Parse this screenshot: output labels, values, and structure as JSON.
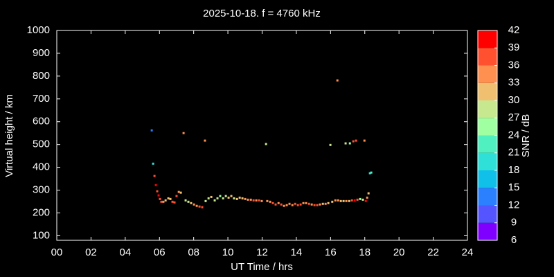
{
  "chart_data": {
    "type": "scatter",
    "title": "2025-10-18. f = 4760 kHz",
    "xlabel": "UT Time / hrs",
    "ylabel": "Virtual height / km",
    "colorbar_label": "SNR / dB",
    "xlim": [
      0,
      24
    ],
    "ylim": [
      80,
      1000
    ],
    "xticks": [
      {
        "value": 0,
        "label": "00"
      },
      {
        "value": 2,
        "label": "02"
      },
      {
        "value": 4,
        "label": "04"
      },
      {
        "value": 6,
        "label": "06"
      },
      {
        "value": 8,
        "label": "08"
      },
      10,
      12,
      14,
      16,
      18,
      20,
      22,
      24
    ],
    "yticks": [
      100,
      200,
      300,
      400,
      500,
      600,
      700,
      800,
      900,
      1000
    ],
    "clim": [
      6,
      42
    ],
    "cticks": [
      6,
      9,
      12,
      15,
      18,
      21,
      24,
      27,
      30,
      33,
      36,
      39,
      42
    ],
    "colors": [
      "#8000ff",
      "#5555ff",
      "#2a80ff",
      "#10c0e8",
      "#2ee0d8",
      "#50f0c0",
      "#a0ffa0",
      "#c8e890",
      "#f0c070",
      "#ff9050",
      "#ff5030",
      "#ff0000"
    ],
    "x": [
      5.55,
      5.63,
      5.71,
      5.79,
      5.87,
      5.95,
      6.03,
      6.11,
      6.23,
      6.36,
      6.52,
      6.64,
      6.76,
      6.88,
      7.0,
      7.13,
      7.25,
      7.41,
      7.53,
      7.69,
      7.85,
      8.02,
      8.18,
      8.34,
      8.5,
      8.66,
      8.7,
      8.87,
      9.03,
      9.23,
      9.39,
      9.55,
      9.72,
      9.88,
      10.04,
      10.2,
      10.36,
      10.53,
      10.69,
      10.85,
      11.01,
      11.17,
      11.34,
      11.5,
      11.66,
      11.82,
      11.98,
      12.23,
      12.3,
      12.47,
      12.63,
      12.79,
      12.96,
      13.12,
      13.28,
      13.44,
      13.6,
      13.77,
      13.93,
      14.09,
      14.25,
      14.41,
      14.57,
      14.74,
      14.9,
      15.06,
      15.22,
      15.38,
      15.55,
      15.71,
      15.87,
      15.99,
      16.1,
      16.28,
      16.4,
      16.44,
      16.6,
      16.76,
      16.88,
      16.92,
      17.09,
      17.13,
      17.25,
      17.33,
      17.41,
      17.49,
      17.57,
      17.73,
      17.89,
      17.98,
      18.06,
      18.14,
      18.22,
      18.3,
      18.38
    ],
    "values": [
      562,
      416,
      362,
      322,
      295,
      277,
      261,
      249,
      249,
      255,
      264,
      261,
      249,
      246,
      274,
      292,
      289,
      550,
      255,
      249,
      243,
      237,
      231,
      228,
      225,
      517,
      252,
      264,
      270,
      255,
      264,
      274,
      264,
      274,
      267,
      274,
      264,
      261,
      267,
      264,
      261,
      258,
      258,
      255,
      255,
      255,
      252,
      502,
      252,
      249,
      243,
      237,
      243,
      237,
      231,
      234,
      240,
      234,
      240,
      234,
      237,
      243,
      243,
      240,
      237,
      234,
      234,
      237,
      240,
      240,
      243,
      498,
      249,
      255,
      781,
      255,
      252,
      252,
      505,
      252,
      252,
      505,
      255,
      514,
      255,
      517,
      258,
      261,
      258,
      517,
      252,
      267,
      286,
      374,
      377
    ],
    "snr": [
      12,
      20,
      37,
      40,
      36,
      39,
      38,
      36,
      33,
      31,
      30,
      32,
      36,
      38,
      36,
      35,
      32,
      33,
      27,
      28,
      30,
      33,
      35,
      37,
      36,
      35,
      28,
      29,
      30,
      27,
      29,
      26,
      28,
      29,
      31,
      30,
      29,
      31,
      30,
      32,
      34,
      33,
      35,
      36,
      34,
      36,
      33,
      27,
      34,
      35,
      37,
      38,
      35,
      36,
      34,
      35,
      33,
      35,
      36,
      37,
      36,
      33,
      35,
      36,
      34,
      37,
      38,
      33,
      32,
      33,
      32,
      27,
      31,
      33,
      35,
      34,
      32,
      31,
      27,
      33,
      31,
      26,
      36,
      38,
      39,
      37,
      37,
      26,
      28,
      35,
      39,
      33,
      30,
      20,
      21
    ]
  }
}
